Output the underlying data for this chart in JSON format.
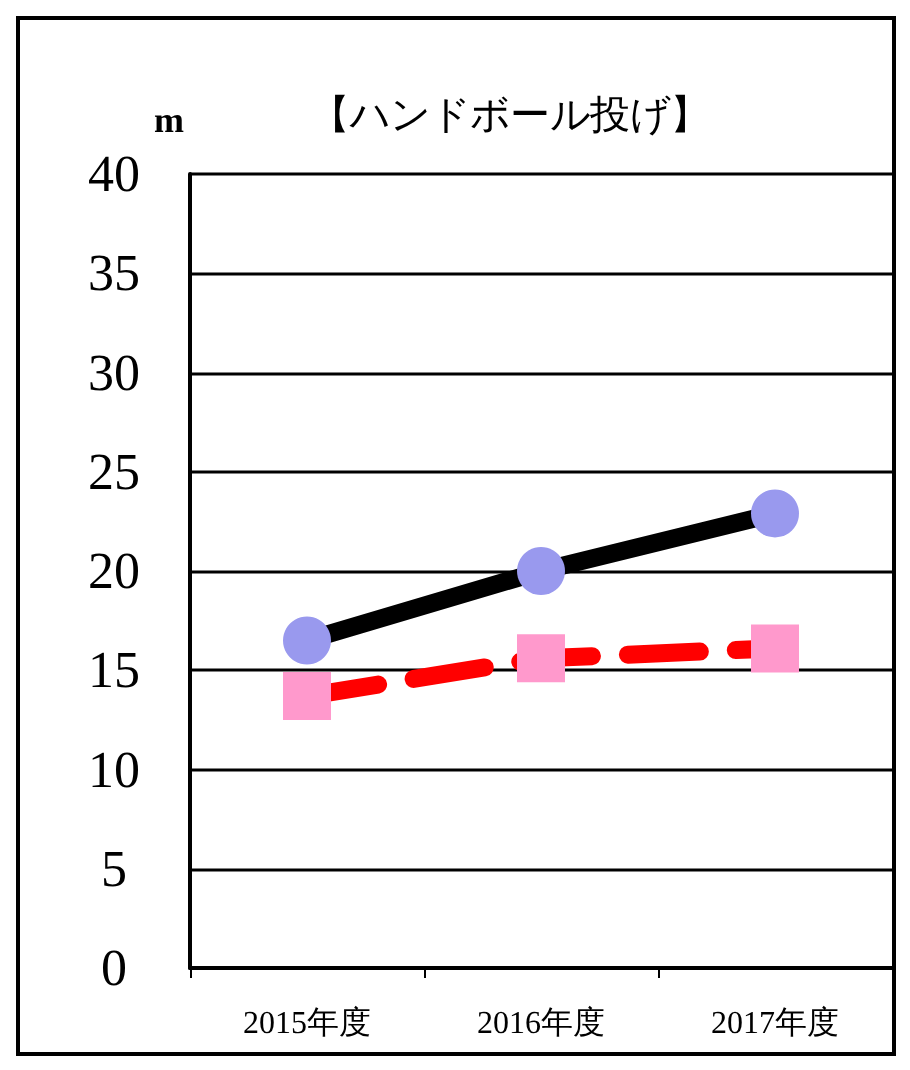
{
  "chart_data": {
    "type": "line",
    "title": "【ハンドボール投げ】",
    "ylabel": "m",
    "categories": [
      "2015年度",
      "2016年度",
      "2017年度"
    ],
    "series": [
      {
        "color": "#000000",
        "colors": [
          "#9999ee",
          "#9999ee",
          "#9999ee"
        ],
        "marker": "circle",
        "line_style": "solid",
        "values": [
          16.5,
          20,
          22.9
        ]
      },
      {
        "color": "#ff0000",
        "colors": [
          "#ff99cc",
          "#ff99cc",
          "#ff99cc"
        ],
        "marker": "square",
        "line_style": "dashed",
        "values": [
          13.7,
          15.6,
          16.1
        ]
      }
    ],
    "ylim": [
      0,
      40
    ],
    "yticks": [
      0,
      5,
      10,
      15,
      20,
      25,
      30,
      35,
      40
    ],
    "grid": "y"
  }
}
